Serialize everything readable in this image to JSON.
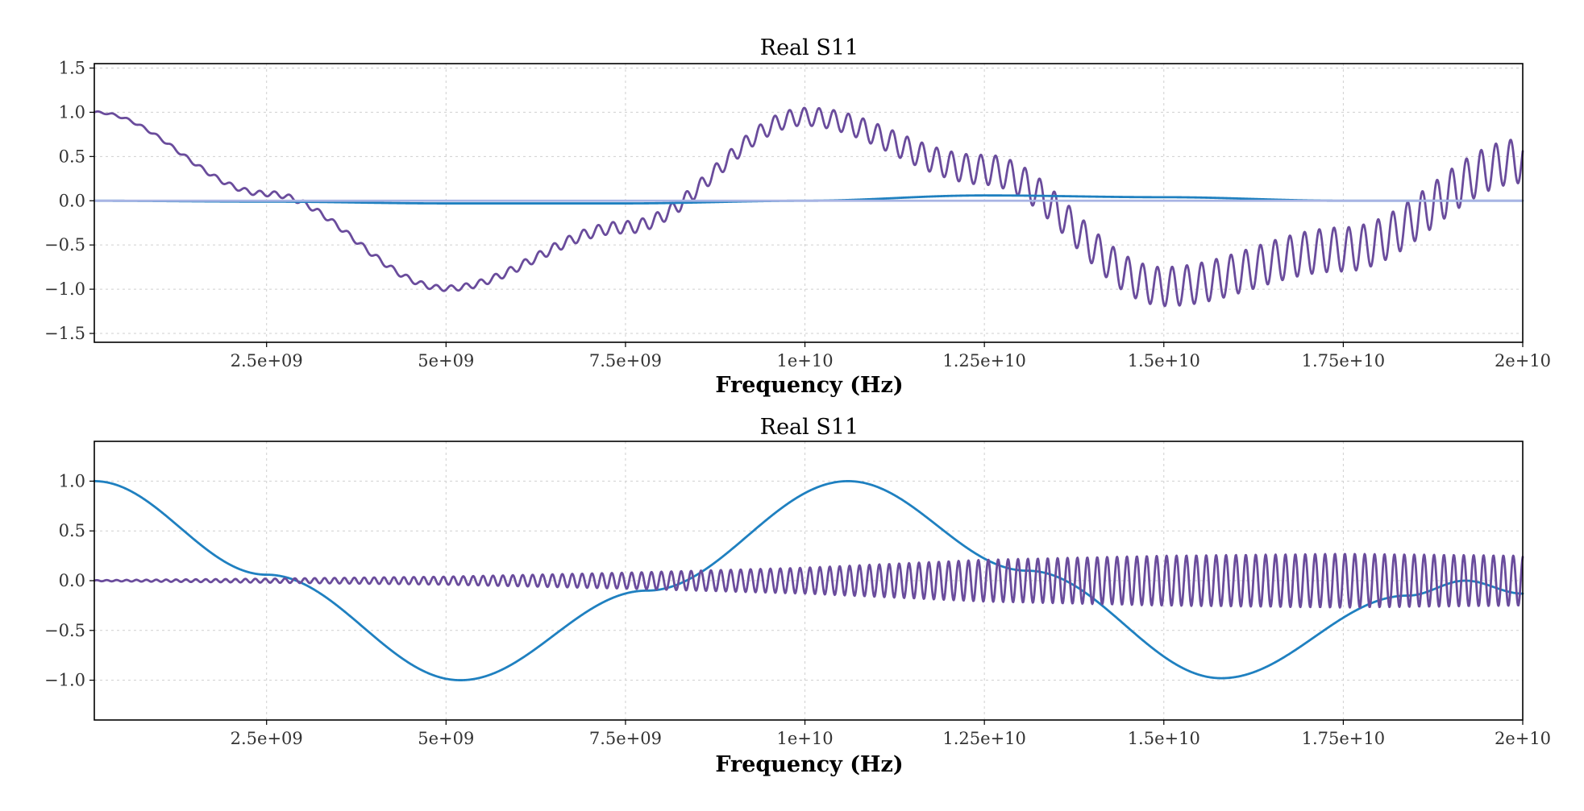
{
  "chart_data": [
    {
      "type": "line",
      "title": "Real S11",
      "xlabel": "Frequency (Hz)",
      "ylabel": "",
      "xlim": [
        100000000.0,
        20000000000.0
      ],
      "ylim": [
        -1.6,
        1.55
      ],
      "xticks": [
        2500000000.0,
        5000000000.0,
        7500000000.0,
        10000000000.0,
        12500000000.0,
        15000000000.0,
        17500000000.0,
        20000000000.0
      ],
      "xtick_labels": [
        "2.5e+09",
        "5e+09",
        "7.5e+09",
        "1e+10",
        "1.25e+10",
        "1.5e+10",
        "1.75e+10",
        "2e+10"
      ],
      "yticks": [
        -1.5,
        -1.0,
        -0.5,
        0.0,
        0.5,
        1.0,
        1.5
      ],
      "ytick_labels": [
        "−1.5",
        "−1.0",
        "−0.5",
        "0.0",
        "0.5",
        "1.0",
        "1.5"
      ],
      "grid": true,
      "colors": [
        "#6a4c9c",
        "#1f80c0",
        "#a9b4e4"
      ],
      "series": [
        {
          "color": "#6a4c9c",
          "x": [
            100000000.0,
            2500000000.0,
            5000000000.0,
            7500000000.0,
            10000000000.0,
            12500000000.0,
            15000000000.0,
            17500000000.0,
            20000000000.0
          ],
          "values": [
            1.0,
            0.08,
            -0.99,
            -0.3,
            0.95,
            0.35,
            -0.97,
            -0.55,
            0.45
          ],
          "ripple_amplitude": [
            0.01,
            0.03,
            0.03,
            0.07,
            0.1,
            0.17,
            0.22,
            0.25,
            0.25
          ],
          "ripple_period": 205000000.0
        },
        {
          "color": "#1f80c0",
          "x": [
            100000000.0,
            2500000000.0,
            5000000000.0,
            7500000000.0,
            10000000000.0,
            12500000000.0,
            15000000000.0,
            17500000000.0,
            20000000000.0
          ],
          "values": [
            0.0,
            -0.01,
            -0.03,
            -0.03,
            0.0,
            0.06,
            0.04,
            0.0,
            0.0
          ]
        },
        {
          "color": "#a9b4e4",
          "x": [
            100000000.0,
            20000000000.0
          ],
          "values": [
            0.0,
            0.0
          ]
        }
      ]
    },
    {
      "type": "line",
      "title": "Real S11",
      "xlabel": "Frequency (Hz)",
      "ylabel": "",
      "xlim": [
        100000000.0,
        20000000000.0
      ],
      "ylim": [
        -1.4,
        1.4
      ],
      "xticks": [
        2500000000.0,
        5000000000.0,
        7500000000.0,
        10000000000.0,
        12500000000.0,
        15000000000.0,
        17500000000.0,
        20000000000.0
      ],
      "xtick_labels": [
        "2.5e+09",
        "5e+09",
        "7.5e+09",
        "1e+10",
        "1.25e+10",
        "1.5e+10",
        "1.75e+10",
        "2e+10"
      ],
      "yticks": [
        -1.0,
        -0.5,
        0.0,
        0.5,
        1.0
      ],
      "ytick_labels": [
        "−1.0",
        "−0.5",
        "0.0",
        "0.5",
        "1.0"
      ],
      "grid": true,
      "colors": [
        "#1f80c0",
        "#6a4c9c"
      ],
      "series": [
        {
          "color": "#1f80c0",
          "x": [
            100000000.0,
            2500000000.0,
            5200000000.0,
            7800000000.0,
            10600000000.0,
            13100000000.0,
            15800000000.0,
            18400000000.0,
            19200000000.0,
            20000000000.0
          ],
          "values": [
            1.0,
            0.06,
            -1.0,
            -0.1,
            1.0,
            0.1,
            -0.98,
            -0.15,
            0.0,
            -0.13
          ]
        },
        {
          "color": "#6a4c9c",
          "x": [
            100000000.0,
            2500000000.0,
            5000000000.0,
            7500000000.0,
            10000000000.0,
            12500000000.0,
            15000000000.0,
            17500000000.0,
            20000000000.0
          ],
          "values": [
            0.0,
            0.0,
            0.0,
            0.0,
            0.0,
            0.0,
            0.0,
            0.0,
            0.0
          ],
          "ripple_amplitude": [
            0.005,
            0.02,
            0.04,
            0.08,
            0.13,
            0.21,
            0.25,
            0.27,
            0.25
          ],
          "ripple_period": 138000000.0
        }
      ]
    }
  ]
}
